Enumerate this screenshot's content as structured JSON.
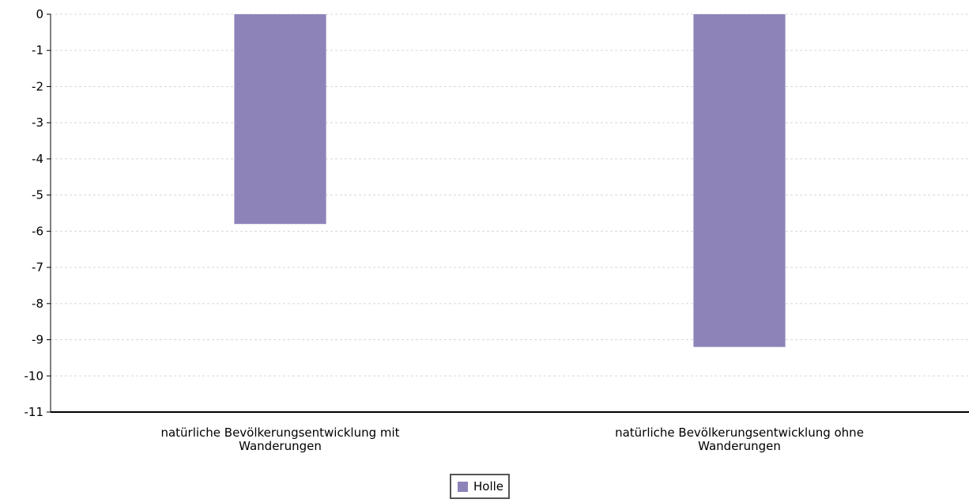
{
  "chart_data": {
    "type": "bar",
    "categories": [
      [
        "natürliche Bevölkerungsentwicklung mit",
        "Wanderungen"
      ],
      [
        "natürliche Bevölkerungsentwicklung ohne",
        "Wanderungen"
      ]
    ],
    "series": [
      {
        "name": "Holle",
        "values": [
          -5.8,
          -9.2
        ],
        "color": "#8e83b9"
      }
    ],
    "ylim": [
      -11,
      0
    ],
    "yticks": [
      0,
      -1,
      -2,
      -3,
      -4,
      -5,
      -6,
      -7,
      -8,
      -9,
      -10,
      -11
    ],
    "grid": true,
    "legend_position": "bottom-center",
    "title": "",
    "xlabel": "",
    "ylabel": ""
  }
}
